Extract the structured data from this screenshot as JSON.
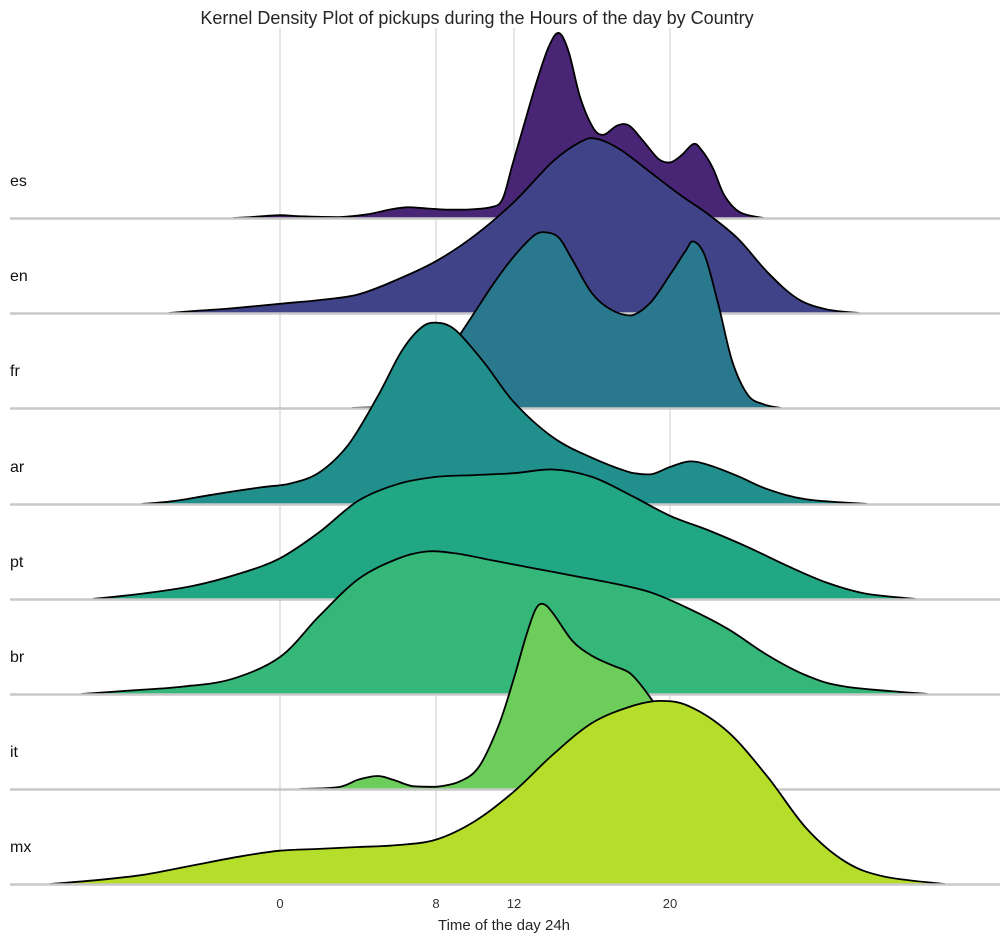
{
  "chart_data": {
    "type": "ridgeline",
    "title": "Kernel Density Plot of pickups during the Hours of the day by Country",
    "xlabel": "Time of the day 24h",
    "x_ticks": [
      0,
      8,
      12,
      20
    ],
    "xlim": [
      -14,
      36
    ],
    "grid_x": true,
    "colormap": "viridis",
    "series": [
      {
        "name": "es",
        "color": "#482575",
        "density": [
          [
            -2.4,
            0
          ],
          [
            -1.5,
            0.005
          ],
          [
            0,
            0.015
          ],
          [
            1,
            0.009
          ],
          [
            3,
            0.005
          ],
          [
            4.5,
            0.02
          ],
          [
            5.6,
            0.045
          ],
          [
            6.5,
            0.058
          ],
          [
            7.5,
            0.052
          ],
          [
            8.5,
            0.045
          ],
          [
            9.5,
            0.045
          ],
          [
            10.8,
            0.058
          ],
          [
            11.4,
            0.1
          ],
          [
            11.9,
            0.28
          ],
          [
            12.5,
            0.5
          ],
          [
            13.2,
            0.75
          ],
          [
            13.8,
            0.93
          ],
          [
            14.3,
            1.0
          ],
          [
            14.8,
            0.9
          ],
          [
            15.4,
            0.65
          ],
          [
            16.1,
            0.48
          ],
          [
            16.6,
            0.45
          ],
          [
            17.3,
            0.5
          ],
          [
            17.9,
            0.5
          ],
          [
            18.6,
            0.42
          ],
          [
            19.4,
            0.32
          ],
          [
            20,
            0.3
          ],
          [
            20.6,
            0.34
          ],
          [
            21.2,
            0.4
          ],
          [
            21.6,
            0.37
          ],
          [
            22.2,
            0.27
          ],
          [
            22.8,
            0.12
          ],
          [
            23.6,
            0.03
          ],
          [
            24.8,
            0
          ]
        ]
      },
      {
        "name": "en",
        "color": "#404387",
        "density": [
          [
            -5.7,
            0
          ],
          [
            -4.5,
            0.01
          ],
          [
            -2.5,
            0.025
          ],
          [
            0,
            0.05
          ],
          [
            2,
            0.07
          ],
          [
            4,
            0.1
          ],
          [
            6,
            0.18
          ],
          [
            8,
            0.28
          ],
          [
            10,
            0.42
          ],
          [
            12,
            0.6
          ],
          [
            14,
            0.82
          ],
          [
            15.5,
            0.93
          ],
          [
            16.3,
            0.94
          ],
          [
            17.5,
            0.88
          ],
          [
            19,
            0.76
          ],
          [
            20.5,
            0.64
          ],
          [
            22,
            0.53
          ],
          [
            23.5,
            0.4
          ],
          [
            25,
            0.22
          ],
          [
            26.5,
            0.08
          ],
          [
            28,
            0.02
          ],
          [
            29.7,
            0
          ]
        ]
      },
      {
        "name": "fr",
        "color": "#2a788e",
        "density": [
          [
            3.7,
            0
          ],
          [
            4.8,
            0.005
          ],
          [
            6,
            0.02
          ],
          [
            7,
            0.08
          ],
          [
            8,
            0.2
          ],
          [
            9,
            0.36
          ],
          [
            10,
            0.52
          ],
          [
            11,
            0.68
          ],
          [
            12,
            0.82
          ],
          [
            13,
            0.93
          ],
          [
            13.6,
            0.95
          ],
          [
            14.3,
            0.92
          ],
          [
            15,
            0.8
          ],
          [
            16,
            0.62
          ],
          [
            17,
            0.53
          ],
          [
            18,
            0.5
          ],
          [
            19,
            0.57
          ],
          [
            20,
            0.72
          ],
          [
            20.8,
            0.85
          ],
          [
            21.2,
            0.9
          ],
          [
            21.8,
            0.82
          ],
          [
            22.5,
            0.55
          ],
          [
            23.2,
            0.25
          ],
          [
            24,
            0.07
          ],
          [
            24.8,
            0.02
          ],
          [
            25.7,
            0
          ]
        ]
      },
      {
        "name": "ar",
        "color": "#21908d",
        "density": [
          [
            -7.1,
            0
          ],
          [
            -5.5,
            0.015
          ],
          [
            -3.5,
            0.05
          ],
          [
            -1,
            0.09
          ],
          [
            0.5,
            0.11
          ],
          [
            2,
            0.17
          ],
          [
            3.5,
            0.32
          ],
          [
            5,
            0.58
          ],
          [
            6.2,
            0.82
          ],
          [
            7.2,
            0.95
          ],
          [
            8,
            0.98
          ],
          [
            9,
            0.94
          ],
          [
            10.5,
            0.76
          ],
          [
            12,
            0.55
          ],
          [
            14,
            0.36
          ],
          [
            16,
            0.25
          ],
          [
            18,
            0.17
          ],
          [
            19,
            0.16
          ],
          [
            20,
            0.2
          ],
          [
            21,
            0.23
          ],
          [
            22,
            0.21
          ],
          [
            23.5,
            0.15
          ],
          [
            25,
            0.08
          ],
          [
            27,
            0.025
          ],
          [
            30.1,
            0
          ]
        ]
      },
      {
        "name": "pt",
        "color": "#22a785",
        "density": [
          [
            -9.6,
            0
          ],
          [
            -7,
            0.03
          ],
          [
            -4.5,
            0.07
          ],
          [
            -2,
            0.14
          ],
          [
            0,
            0.22
          ],
          [
            2,
            0.36
          ],
          [
            4,
            0.53
          ],
          [
            6,
            0.62
          ],
          [
            8,
            0.66
          ],
          [
            10,
            0.67
          ],
          [
            12,
            0.68
          ],
          [
            14,
            0.7
          ],
          [
            16,
            0.66
          ],
          [
            18,
            0.56
          ],
          [
            20,
            0.45
          ],
          [
            22,
            0.37
          ],
          [
            24,
            0.28
          ],
          [
            26,
            0.18
          ],
          [
            28,
            0.09
          ],
          [
            30,
            0.03
          ],
          [
            32.6,
            0
          ]
        ]
      },
      {
        "name": "br",
        "color": "#35b779",
        "density": [
          [
            -10.2,
            0
          ],
          [
            -7.5,
            0.02
          ],
          [
            -5,
            0.04
          ],
          [
            -2.5,
            0.08
          ],
          [
            0,
            0.2
          ],
          [
            2,
            0.42
          ],
          [
            4,
            0.62
          ],
          [
            6,
            0.73
          ],
          [
            7.5,
            0.77
          ],
          [
            9,
            0.76
          ],
          [
            11,
            0.72
          ],
          [
            13,
            0.68
          ],
          [
            15,
            0.64
          ],
          [
            17,
            0.6
          ],
          [
            19,
            0.55
          ],
          [
            21,
            0.46
          ],
          [
            23,
            0.35
          ],
          [
            25,
            0.21
          ],
          [
            27,
            0.1
          ],
          [
            29,
            0.04
          ],
          [
            33.2,
            0
          ]
        ]
      },
      {
        "name": "it",
        "color": "#6ccd5a",
        "density": [
          [
            1,
            0
          ],
          [
            3,
            0.01
          ],
          [
            4,
            0.05
          ],
          [
            5,
            0.07
          ],
          [
            5.8,
            0.05
          ],
          [
            6.8,
            0.015
          ],
          [
            8,
            0.012
          ],
          [
            9.2,
            0.04
          ],
          [
            10.2,
            0.12
          ],
          [
            11.2,
            0.34
          ],
          [
            12,
            0.6
          ],
          [
            12.6,
            0.82
          ],
          [
            13.1,
            0.97
          ],
          [
            13.5,
            1.0
          ],
          [
            14,
            0.95
          ],
          [
            15,
            0.8
          ],
          [
            16,
            0.72
          ],
          [
            17,
            0.67
          ],
          [
            17.9,
            0.63
          ],
          [
            18.6,
            0.55
          ],
          [
            19.5,
            0.42
          ],
          [
            20.5,
            0.3
          ],
          [
            21.5,
            0.2
          ],
          [
            22.5,
            0.1
          ],
          [
            23.5,
            0.03
          ],
          [
            25.4,
            0
          ]
        ]
      },
      {
        "name": "mx",
        "color": "#b5de2b",
        "density": [
          [
            -11.8,
            0
          ],
          [
            -9.5,
            0.02
          ],
          [
            -7,
            0.05
          ],
          [
            -4.5,
            0.1
          ],
          [
            -2,
            0.15
          ],
          [
            0,
            0.18
          ],
          [
            2,
            0.19
          ],
          [
            4,
            0.2
          ],
          [
            6,
            0.21
          ],
          [
            8,
            0.24
          ],
          [
            10,
            0.34
          ],
          [
            12,
            0.5
          ],
          [
            14,
            0.7
          ],
          [
            16,
            0.87
          ],
          [
            18,
            0.96
          ],
          [
            19.5,
            0.99
          ],
          [
            21,
            0.96
          ],
          [
            23,
            0.82
          ],
          [
            25,
            0.58
          ],
          [
            27,
            0.3
          ],
          [
            29,
            0.12
          ],
          [
            31,
            0.04
          ],
          [
            34.1,
            0
          ]
        ]
      }
    ]
  }
}
